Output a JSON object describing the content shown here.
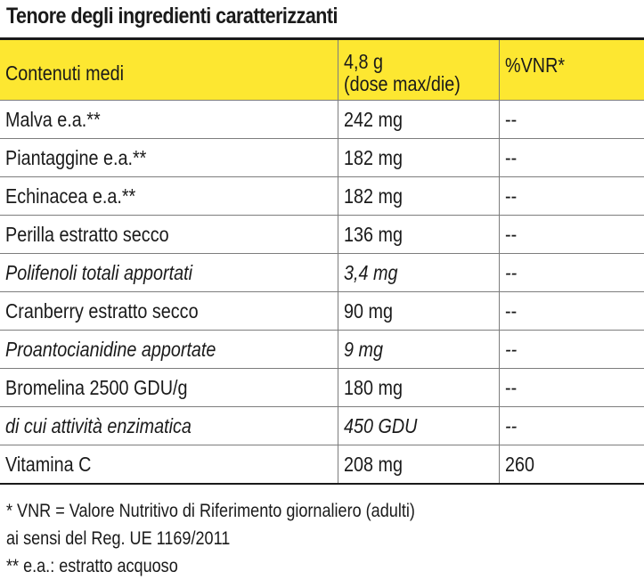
{
  "title": "Tenore degli ingredienti caratterizzanti",
  "table": {
    "headers": {
      "col1": "Contenuti medi",
      "col2_line1": "4,8 g",
      "col2_line2": "(dose max/die)",
      "col3": "%VNR*"
    },
    "rows": [
      {
        "name": "Malva e.a.**",
        "amount": "242 mg",
        "vnr": "--",
        "italic": false
      },
      {
        "name": "Piantaggine e.a.**",
        "amount": "182 mg",
        "vnr": "--",
        "italic": false
      },
      {
        "name": "Echinacea e.a.**",
        "amount": "182 mg",
        "vnr": "--",
        "italic": false
      },
      {
        "name": "Perilla estratto secco",
        "amount": "136 mg",
        "vnr": "--",
        "italic": false
      },
      {
        "name": "Polifenoli totali apportati",
        "amount": "3,4 mg",
        "vnr": "--",
        "italic": true
      },
      {
        "name": "Cranberry estratto secco",
        "amount": "90 mg",
        "vnr": "--",
        "italic": false
      },
      {
        "name": "Proantocianidine apportate",
        "amount": "9 mg",
        "vnr": "--",
        "italic": true
      },
      {
        "name": "Bromelina 2500 GDU/g",
        "amount": "180 mg",
        "vnr": "--",
        "italic": false
      },
      {
        "name": "di cui attività enzimatica",
        "amount": "450 GDU",
        "vnr": "--",
        "italic": true
      },
      {
        "name": "Vitamina C",
        "amount": "208 mg",
        "vnr": "260",
        "italic": false
      }
    ]
  },
  "footnotes": {
    "line1": "* VNR = Valore Nutritivo di Riferimento giornaliero (adulti)",
    "line2": "ai sensi del Reg. UE 1169/2011",
    "line3": "** e.a.: estratto acquoso"
  },
  "colors": {
    "header_background": "#fde731",
    "text": "#1a1a1a",
    "grid": "#7d7d7d"
  }
}
